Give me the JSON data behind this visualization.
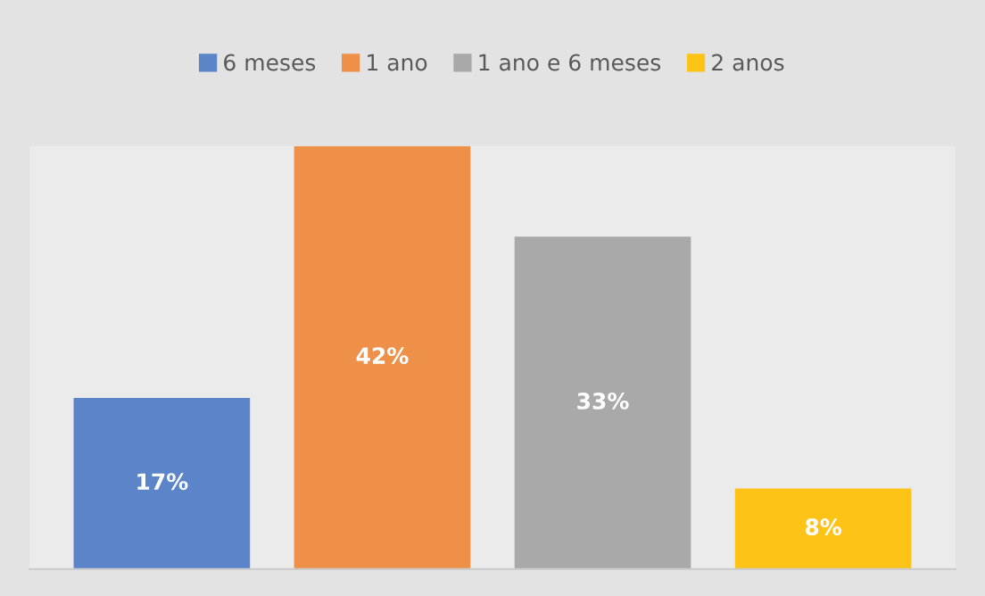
{
  "chart_data": {
    "type": "bar",
    "categories": [
      null
    ],
    "series": [
      {
        "name": "6 meses",
        "color": "#5b84c9",
        "values": [
          17
        ],
        "value_labels": [
          "17%"
        ]
      },
      {
        "name": "1 ano",
        "color": "#ef9049",
        "values": [
          42
        ],
        "value_labels": [
          "42%"
        ]
      },
      {
        "name": "1 ano e 6 meses",
        "color": "#a9a9a9",
        "values": [
          33
        ],
        "value_labels": [
          "33%"
        ]
      },
      {
        "name": "2 anos",
        "color": "#fdc317",
        "values": [
          8
        ],
        "value_labels": [
          "8%"
        ]
      }
    ],
    "legend": "top",
    "grid": false
  }
}
